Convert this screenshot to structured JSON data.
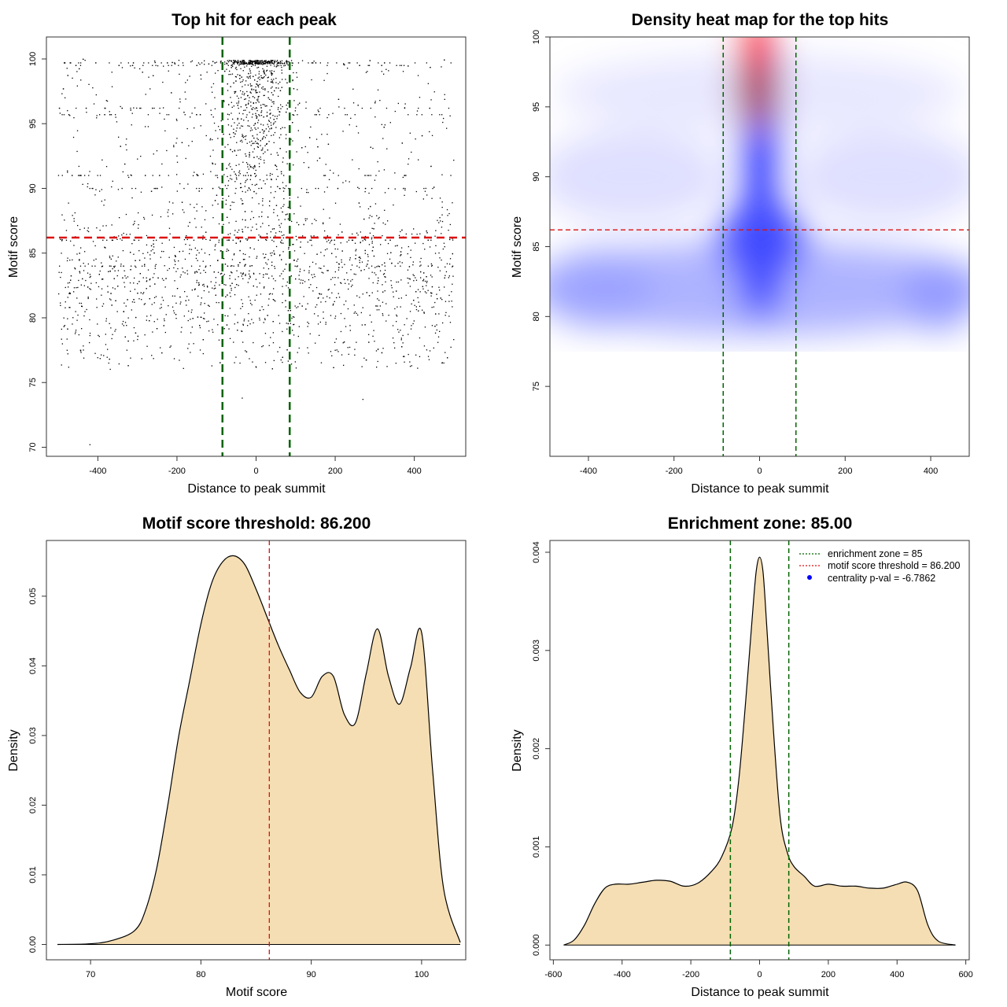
{
  "chart_data": [
    {
      "id": "scatter",
      "type": "scatter",
      "title": "Top hit for each peak",
      "xlabel": "Distance to peak summit",
      "ylabel": "Motif score",
      "xlim": [
        -530,
        530
      ],
      "ylim": [
        69.3,
        101.7
      ],
      "xticks": [
        -400,
        -200,
        0,
        200,
        400
      ],
      "yticks": [
        70,
        75,
        80,
        85,
        90,
        95,
        100
      ],
      "hline": {
        "y": 86.2,
        "color": "#dd1111"
      },
      "vlines": {
        "x": [
          -85,
          85
        ],
        "color": "#006400"
      },
      "points_description_values": {
        "x_range": [
          -500,
          500
        ],
        "central_cluster_sd": 45,
        "background_score_mean": 83,
        "central_score_mean": 91,
        "n_points": 3200
      },
      "special_points": [
        {
          "x": -420,
          "y": 70.2
        },
        {
          "x": -35,
          "y": 73.8
        },
        {
          "x": 270,
          "y": 73.7
        }
      ]
    },
    {
      "id": "heatmap",
      "type": "heatmap",
      "title": "Density heat map for the top hits",
      "xlabel": "Distance to peak summit",
      "ylabel": "Motif score",
      "xlim": [
        -490,
        490
      ],
      "ylim": [
        70,
        100
      ],
      "xticks": [
        -400,
        -200,
        0,
        200,
        400
      ],
      "yticks": [
        75,
        80,
        85,
        90,
        95,
        100
      ],
      "hline": {
        "y": 86.2,
        "color": "#dd1111"
      },
      "vlines": {
        "x": [
          -85,
          85
        ],
        "color": "#006400"
      },
      "color_low": "#ffffff",
      "color_mid": "#0000ff",
      "color_high": "#ff0000"
    },
    {
      "id": "score_density",
      "type": "area",
      "title": "Motif score threshold: 86.200",
      "xlabel": "Motif score",
      "ylabel": "Density",
      "xlim": [
        66,
        104
      ],
      "ylim": [
        -0.0022,
        0.058
      ],
      "xticks": [
        70,
        80,
        90,
        100
      ],
      "yticks": [
        0.0,
        0.01,
        0.02,
        0.03,
        0.04,
        0.05
      ],
      "ytick_labels": [
        "0.00",
        "0.01",
        "0.02",
        "0.03",
        "0.04",
        "0.05"
      ],
      "fill": "#f5deb3",
      "vline": {
        "x": 86.2,
        "color": "#dd1111"
      },
      "x": [
        67,
        70,
        72,
        74,
        75,
        76,
        77,
        78,
        79,
        80,
        81,
        82,
        83,
        84,
        85,
        86,
        87,
        88,
        89,
        90,
        91,
        92,
        93,
        94,
        95,
        96,
        97,
        98,
        99,
        100,
        101,
        102,
        103.5
      ],
      "y": [
        0.0,
        0.0001,
        0.0006,
        0.002,
        0.005,
        0.011,
        0.02,
        0.03,
        0.038,
        0.046,
        0.052,
        0.055,
        0.0558,
        0.0545,
        0.051,
        0.047,
        0.043,
        0.0395,
        0.0362,
        0.0355,
        0.0385,
        0.0385,
        0.033,
        0.0318,
        0.039,
        0.0453,
        0.0385,
        0.0345,
        0.0398,
        0.0448,
        0.025,
        0.008,
        0.0003
      ]
    },
    {
      "id": "distance_density",
      "type": "area",
      "title": "Enrichment zone: 85.00",
      "xlabel": "Distance to peak summit",
      "ylabel": "Density",
      "xlim": [
        -610,
        610
      ],
      "ylim": [
        -0.00015,
        0.00412
      ],
      "xticks": [
        -600,
        -400,
        -200,
        0,
        200,
        400,
        600
      ],
      "yticks": [
        0.0,
        0.001,
        0.002,
        0.003,
        0.004
      ],
      "ytick_labels": [
        "0.000",
        "0.001",
        "0.002",
        "0.003",
        "0.004"
      ],
      "fill": "#f5deb3",
      "vlines": {
        "x": [
          -85,
          85
        ],
        "color": "#006400"
      },
      "x": [
        -570,
        -540,
        -510,
        -480,
        -450,
        -420,
        -380,
        -340,
        -300,
        -260,
        -220,
        -180,
        -140,
        -110,
        -80,
        -60,
        -40,
        -20,
        -10,
        0,
        10,
        20,
        40,
        60,
        80,
        100,
        130,
        160,
        200,
        240,
        280,
        320,
        360,
        400,
        430,
        460,
        490,
        520,
        570
      ],
      "y": [
        0.0,
        5e-05,
        0.0002,
        0.00042,
        0.00058,
        0.00062,
        0.00062,
        0.00064,
        0.00066,
        0.00065,
        0.0006,
        0.00063,
        0.00075,
        0.0009,
        0.0012,
        0.0017,
        0.0025,
        0.0034,
        0.0038,
        0.00395,
        0.0038,
        0.0033,
        0.0022,
        0.0013,
        0.00095,
        0.0008,
        0.0007,
        0.0006,
        0.00062,
        0.0006,
        0.0006,
        0.00058,
        0.00058,
        0.00062,
        0.00064,
        0.00055,
        0.0002,
        4e-05,
        0.0
      ],
      "legend": {
        "position": "top-right",
        "entries": [
          {
            "label": "enrichment zone = 85",
            "color": "#006400",
            "style": "dotted-line"
          },
          {
            "label": "motif score threshold = 86.200",
            "color": "#dd1111",
            "style": "dotted-line"
          },
          {
            "label": "centrality p-val = -6.7862",
            "color": "#0000ff",
            "style": "point"
          }
        ]
      }
    }
  ]
}
